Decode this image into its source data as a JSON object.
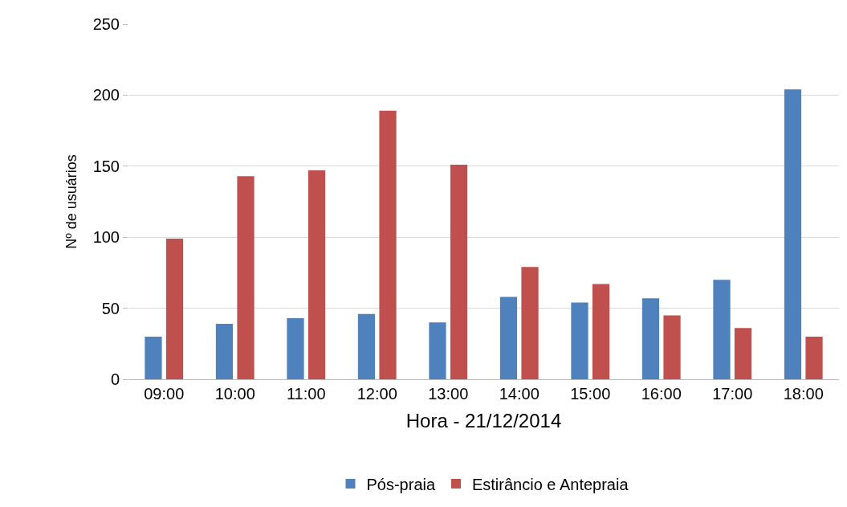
{
  "chart_data": {
    "type": "bar",
    "xlabel": "Hora - 21/12/2014",
    "ylabel": "Nº de usuários",
    "categories": [
      "09:00",
      "10:00",
      "11:00",
      "12:00",
      "13:00",
      "14:00",
      "15:00",
      "16:00",
      "17:00",
      "18:00"
    ],
    "series": [
      {
        "name": "Pós-praia",
        "color": "#4f81bd",
        "values": [
          30,
          39,
          43,
          46,
          40,
          58,
          54,
          57,
          70,
          204
        ]
      },
      {
        "name": "Estirâncio e Antepraia",
        "color": "#c0504d",
        "values": [
          99,
          143,
          147,
          189,
          151,
          79,
          67,
          45,
          36,
          30
        ]
      }
    ],
    "ylim": [
      0,
      250
    ],
    "yticks": [
      0,
      50,
      100,
      150,
      200,
      250
    ],
    "grid": "y",
    "legend": "bottom"
  }
}
